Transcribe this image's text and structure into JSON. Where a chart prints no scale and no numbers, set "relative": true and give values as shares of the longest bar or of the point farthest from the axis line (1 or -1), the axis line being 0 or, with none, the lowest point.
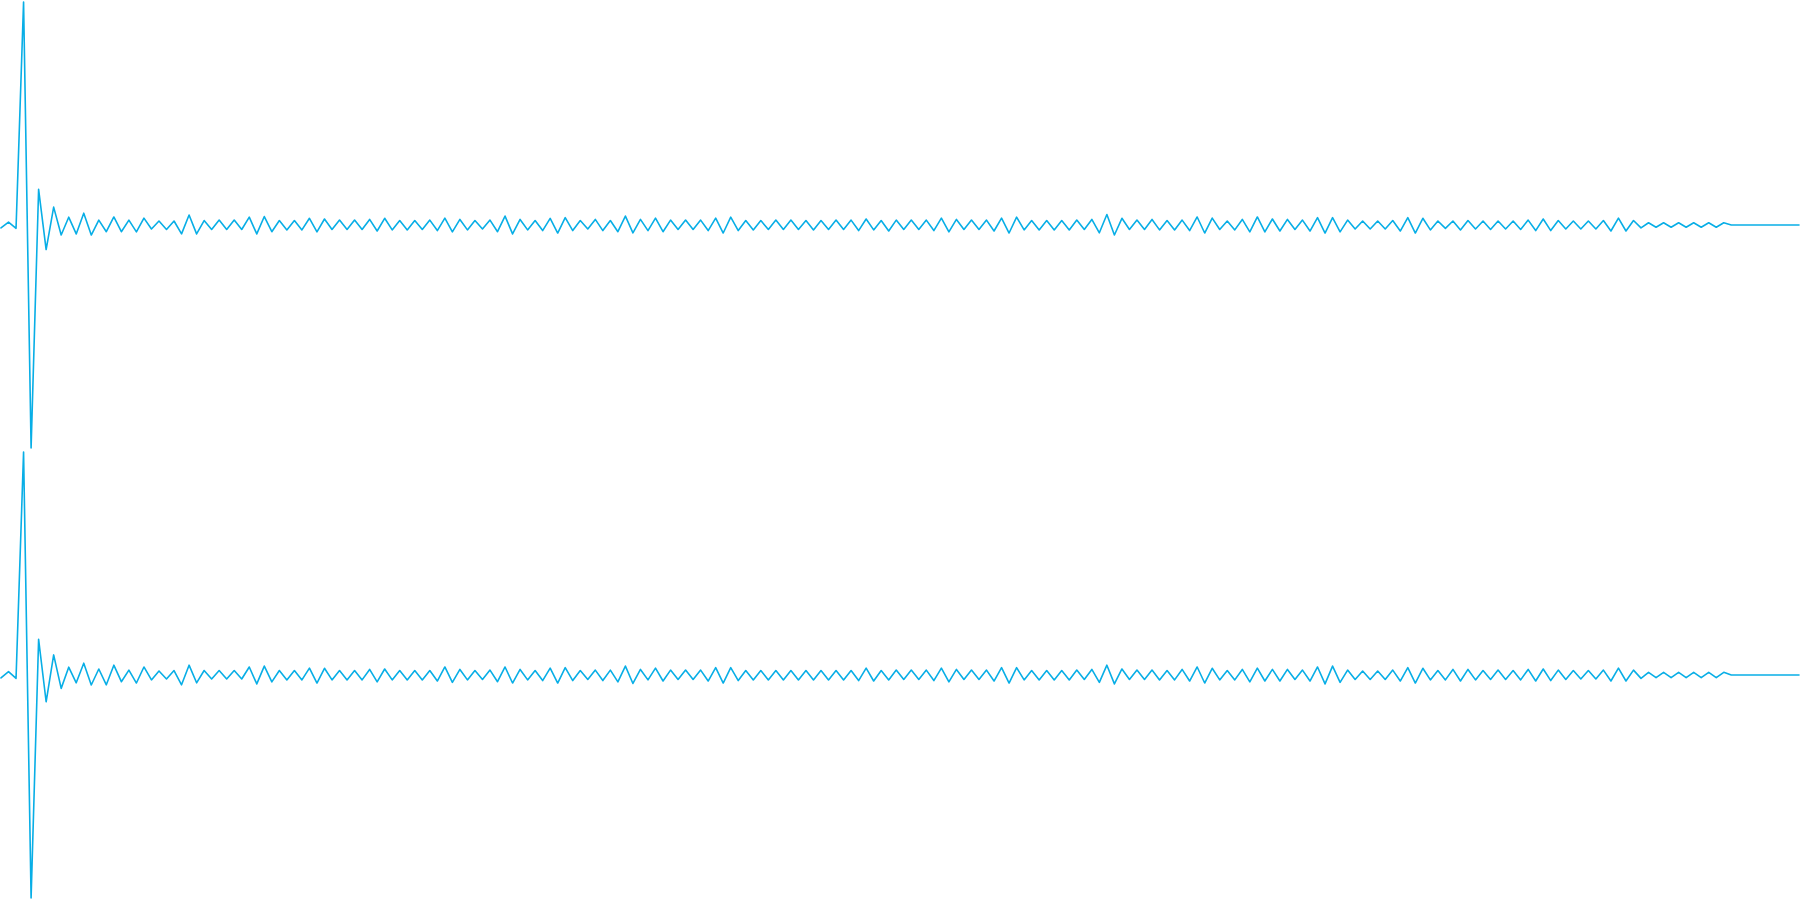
{
  "chart_data": [
    {
      "type": "line",
      "relative": true,
      "categories": [
        null,
        null,
        null,
        null,
        null,
        null,
        null,
        null,
        null,
        null,
        null,
        null,
        null,
        null,
        null,
        null,
        null,
        null,
        null,
        null,
        null,
        null,
        null,
        null,
        null,
        null,
        null,
        null,
        null,
        null,
        null,
        null,
        null,
        null,
        null,
        null,
        null,
        null,
        null,
        null,
        null,
        null,
        null,
        null,
        null,
        null,
        null,
        null,
        null,
        null,
        null,
        null,
        null,
        null,
        null,
        null,
        null,
        null,
        null,
        null,
        null,
        null,
        null,
        null,
        null,
        null,
        null,
        null,
        null,
        null,
        null,
        null,
        null,
        null,
        null,
        null,
        null,
        null,
        null,
        null,
        null,
        null,
        null,
        null,
        null,
        null,
        null,
        null,
        null,
        null,
        null,
        null,
        null,
        null,
        null,
        null,
        null,
        null,
        null,
        null,
        null,
        null,
        null,
        null,
        null,
        null,
        null,
        null,
        null,
        null,
        null,
        null,
        null,
        null,
        null,
        null,
        null,
        null,
        null,
        null,
        null,
        null,
        null,
        null,
        null,
        null,
        null,
        null,
        null,
        null,
        null,
        null,
        null,
        null,
        null,
        null,
        null,
        null,
        null,
        null,
        null,
        null,
        null,
        null,
        null,
        null,
        null,
        null,
        null,
        null,
        null,
        null,
        null,
        null,
        null,
        null,
        null,
        null,
        null,
        null,
        null,
        null,
        null,
        null,
        null,
        null,
        null,
        null,
        null,
        null,
        null,
        null,
        null,
        null,
        null,
        null,
        null,
        null,
        null,
        null,
        null,
        null,
        null,
        null,
        null,
        null,
        null,
        null,
        null,
        null,
        null,
        null,
        null,
        null,
        null,
        null,
        null,
        null,
        null,
        null,
        null,
        null,
        null,
        null,
        null,
        null,
        null,
        null,
        null,
        null,
        null,
        null,
        null,
        null,
        null,
        null,
        null,
        null,
        null,
        null,
        null,
        null,
        null,
        null,
        null,
        null,
        null,
        null,
        null,
        null,
        null,
        null,
        null,
        null,
        null,
        null,
        null,
        null,
        null,
        null
      ],
      "series": [
        {
          "color": "#08aee6",
          "values": [
            0.4935,
            0.5065,
            0.4925,
            1,
            0,
            0.58,
            0.445,
            0.54,
            0.4775,
            0.5175,
            0.48,
            0.5265,
            0.4775,
            0.511,
            0.485,
            0.518,
            0.485,
            0.511,
            0.4845,
            0.5155,
            0.491,
            0.509,
            0.49,
            0.509,
            0.48,
            0.5225,
            0.48,
            0.51,
            0.49,
            0.511,
            0.49,
            0.511,
            0.49,
            0.5175,
            0.48,
            0.519,
            0.485,
            0.51,
            0.489,
            0.51,
            0.489,
            0.515,
            0.4845,
            0.5135,
            0.49,
            0.511,
            0.49,
            0.511,
            0.49,
            0.5125,
            0.4865,
            0.515,
            0.489,
            0.51,
            0.489,
            0.51,
            0.49,
            0.511,
            0.4875,
            0.5155,
            0.4845,
            0.5125,
            0.489,
            0.51,
            0.491,
            0.511,
            0.485,
            0.52,
            0.48,
            0.5125,
            0.489,
            0.51,
            0.4875,
            0.515,
            0.482,
            0.5165,
            0.4875,
            0.51,
            0.491,
            0.5125,
            0.4875,
            0.51,
            0.485,
            0.52,
            0.4825,
            0.5125,
            0.4875,
            0.5155,
            0.485,
            0.511,
            0.49,
            0.511,
            0.49,
            0.511,
            0.4875,
            0.5155,
            0.482,
            0.5175,
            0.4875,
            0.51,
            0.489,
            0.51,
            0.49,
            0.511,
            0.49,
            0.511,
            0.49,
            0.51,
            0.489,
            0.51,
            0.49,
            0.511,
            0.49,
            0.511,
            0.4875,
            0.5135,
            0.489,
            0.51,
            0.4865,
            0.511,
            0.49,
            0.511,
            0.49,
            0.511,
            0.4875,
            0.5155,
            0.4845,
            0.5125,
            0.49,
            0.511,
            0.49,
            0.511,
            0.4865,
            0.5155,
            0.482,
            0.5175,
            0.489,
            0.51,
            0.489,
            0.51,
            0.489,
            0.51,
            0.489,
            0.511,
            0.49,
            0.5125,
            0.4825,
            0.5235,
            0.4775,
            0.515,
            0.49,
            0.511,
            0.49,
            0.5125,
            0.489,
            0.51,
            0.489,
            0.511,
            0.4875,
            0.518,
            0.482,
            0.5155,
            0.49,
            0.509,
            0.489,
            0.5125,
            0.4845,
            0.518,
            0.4845,
            0.5135,
            0.4865,
            0.5125,
            0.49,
            0.511,
            0.4865,
            0.5165,
            0.482,
            0.5165,
            0.4845,
            0.511,
            0.491,
            0.509,
            0.491,
            0.509,
            0.491,
            0.51,
            0.4865,
            0.5165,
            0.482,
            0.515,
            0.489,
            0.509,
            0.4925,
            0.509,
            0.489,
            0.51,
            0.491,
            0.509,
            0.49,
            0.509,
            0.491,
            0.509,
            0.49,
            0.511,
            0.4875,
            0.5135,
            0.4875,
            0.51,
            0.491,
            0.509,
            0.491,
            0.509,
            0.491,
            0.51,
            0.4865,
            0.5155,
            0.4865,
            0.51,
            0.4935,
            0.505,
            0.495,
            0.505,
            0.495,
            0.505,
            0.495,
            0.505,
            0.495,
            0.505,
            0.495,
            0.505,
            0.5,
            0.5,
            0.5,
            0.5,
            0.5,
            0.5,
            0.5,
            0.5,
            0.5,
            0.5
          ]
        }
      ]
    },
    {
      "type": "line",
      "relative": true,
      "categories": [
        null,
        null,
        null,
        null,
        null,
        null,
        null,
        null,
        null,
        null,
        null,
        null,
        null,
        null,
        null,
        null,
        null,
        null,
        null,
        null,
        null,
        null,
        null,
        null,
        null,
        null,
        null,
        null,
        null,
        null,
        null,
        null,
        null,
        null,
        null,
        null,
        null,
        null,
        null,
        null,
        null,
        null,
        null,
        null,
        null,
        null,
        null,
        null,
        null,
        null,
        null,
        null,
        null,
        null,
        null,
        null,
        null,
        null,
        null,
        null,
        null,
        null,
        null,
        null,
        null,
        null,
        null,
        null,
        null,
        null,
        null,
        null,
        null,
        null,
        null,
        null,
        null,
        null,
        null,
        null,
        null,
        null,
        null,
        null,
        null,
        null,
        null,
        null,
        null,
        null,
        null,
        null,
        null,
        null,
        null,
        null,
        null,
        null,
        null,
        null,
        null,
        null,
        null,
        null,
        null,
        null,
        null,
        null,
        null,
        null,
        null,
        null,
        null,
        null,
        null,
        null,
        null,
        null,
        null,
        null,
        null,
        null,
        null,
        null,
        null,
        null,
        null,
        null,
        null,
        null,
        null,
        null,
        null,
        null,
        null,
        null,
        null,
        null,
        null,
        null,
        null,
        null,
        null,
        null,
        null,
        null,
        null,
        null,
        null,
        null,
        null,
        null,
        null,
        null,
        null,
        null,
        null,
        null,
        null,
        null,
        null,
        null,
        null,
        null,
        null,
        null,
        null,
        null,
        null,
        null,
        null,
        null,
        null,
        null,
        null,
        null,
        null,
        null,
        null,
        null,
        null,
        null,
        null,
        null,
        null,
        null,
        null,
        null,
        null,
        null,
        null,
        null,
        null,
        null,
        null,
        null,
        null,
        null,
        null,
        null,
        null,
        null,
        null,
        null,
        null,
        null,
        null,
        null,
        null,
        null,
        null,
        null,
        null,
        null,
        null,
        null,
        null,
        null,
        null,
        null,
        null,
        null,
        null,
        null,
        null,
        null,
        null,
        null,
        null,
        null,
        null,
        null,
        null,
        null,
        null,
        null,
        null,
        null,
        null,
        null
      ],
      "series": [
        {
          "color": "#08aee6",
          "values": [
            0.4935,
            0.5075,
            0.4925,
            1,
            0,
            0.58,
            0.44,
            0.545,
            0.47,
            0.5175,
            0.4825,
            0.5265,
            0.4775,
            0.5135,
            0.478,
            0.522,
            0.485,
            0.511,
            0.482,
            0.518,
            0.489,
            0.509,
            0.491,
            0.51,
            0.478,
            0.522,
            0.4825,
            0.51,
            0.491,
            0.51,
            0.491,
            0.51,
            0.491,
            0.518,
            0.48,
            0.52,
            0.4845,
            0.51,
            0.489,
            0.51,
            0.489,
            0.5155,
            0.482,
            0.515,
            0.489,
            0.51,
            0.489,
            0.51,
            0.489,
            0.5125,
            0.4845,
            0.5135,
            0.489,
            0.51,
            0.489,
            0.51,
            0.489,
            0.51,
            0.4865,
            0.518,
            0.4835,
            0.5125,
            0.489,
            0.51,
            0.49,
            0.511,
            0.485,
            0.518,
            0.482,
            0.5125,
            0.489,
            0.51,
            0.4875,
            0.5155,
            0.482,
            0.5165,
            0.4875,
            0.51,
            0.49,
            0.511,
            0.4875,
            0.511,
            0.4845,
            0.52,
            0.481,
            0.5125,
            0.489,
            0.5155,
            0.4865,
            0.511,
            0.49,
            0.511,
            0.49,
            0.511,
            0.4865,
            0.5165,
            0.482,
            0.5165,
            0.4875,
            0.51,
            0.489,
            0.51,
            0.489,
            0.51,
            0.489,
            0.51,
            0.489,
            0.51,
            0.489,
            0.51,
            0.489,
            0.51,
            0.489,
            0.51,
            0.4875,
            0.5155,
            0.4865,
            0.51,
            0.489,
            0.511,
            0.49,
            0.511,
            0.49,
            0.511,
            0.4875,
            0.5155,
            0.4845,
            0.5125,
            0.49,
            0.511,
            0.49,
            0.511,
            0.4865,
            0.5165,
            0.482,
            0.5165,
            0.489,
            0.51,
            0.489,
            0.51,
            0.489,
            0.51,
            0.489,
            0.511,
            0.49,
            0.5125,
            0.4835,
            0.522,
            0.48,
            0.5135,
            0.49,
            0.511,
            0.49,
            0.511,
            0.489,
            0.51,
            0.489,
            0.5125,
            0.4865,
            0.518,
            0.482,
            0.515,
            0.489,
            0.51,
            0.489,
            0.5125,
            0.4845,
            0.5155,
            0.4865,
            0.5125,
            0.4865,
            0.5125,
            0.49,
            0.511,
            0.4865,
            0.518,
            0.48,
            0.52,
            0.4835,
            0.511,
            0.49,
            0.509,
            0.49,
            0.509,
            0.49,
            0.511,
            0.4865,
            0.5165,
            0.482,
            0.515,
            0.489,
            0.51,
            0.489,
            0.5125,
            0.4865,
            0.5125,
            0.489,
            0.51,
            0.49,
            0.511,
            0.49,
            0.51,
            0.489,
            0.5125,
            0.4865,
            0.5135,
            0.4875,
            0.511,
            0.49,
            0.51,
            0.491,
            0.51,
            0.491,
            0.511,
            0.4865,
            0.5155,
            0.4865,
            0.511,
            0.4925,
            0.506,
            0.494,
            0.506,
            0.494,
            0.506,
            0.494,
            0.506,
            0.494,
            0.506,
            0.494,
            0.506,
            0.5,
            0.5,
            0.5,
            0.5,
            0.5,
            0.5,
            0.5,
            0.5,
            0.5,
            0.5
          ]
        }
      ]
    }
  ]
}
